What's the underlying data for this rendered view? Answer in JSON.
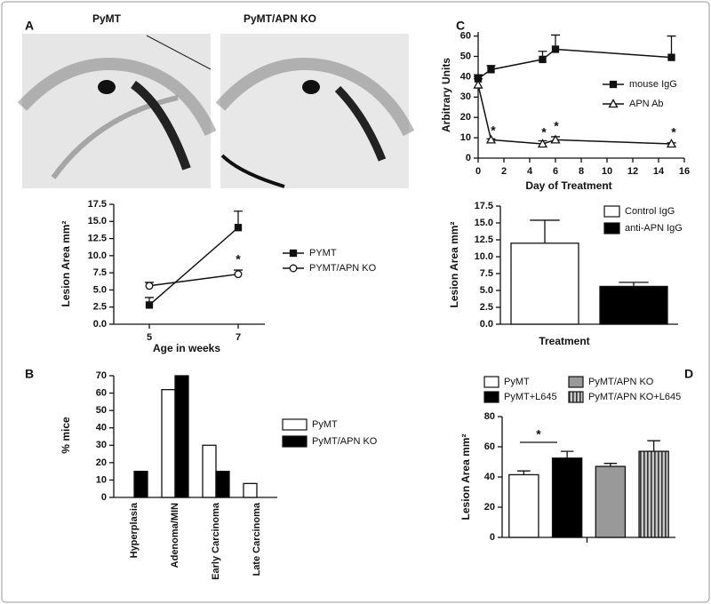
{
  "chart_data": [
    {
      "type": "line",
      "panel": "A",
      "image_titles": [
        "PyMT",
        "PyMT/APN KO"
      ],
      "xlabel": "Age in weeks",
      "ylabel": "Lesion Area mm²",
      "x": [
        5,
        7
      ],
      "xlim": [
        4.2,
        7.6
      ],
      "xticks": [
        5,
        7
      ],
      "ylim": [
        0,
        17.5
      ],
      "yticks": [
        {
          "value": 0,
          "label": "0.0"
        },
        2.5,
        {
          "value": 5,
          "label": "5.0"
        },
        7.5,
        {
          "value": 10,
          "label": "10.0"
        },
        12.5,
        {
          "value": 15,
          "label": "15.0"
        },
        17.5
      ],
      "grid": false,
      "series": [
        {
          "name": "PYMT",
          "color": "#111111",
          "marker": "square",
          "filled": true,
          "values": [
            2.8,
            14.1
          ],
          "errors": [
            1.1,
            2.4
          ]
        },
        {
          "name": "PYMT/APN KO",
          "color": "#111111",
          "marker": "circle",
          "filled": false,
          "values": [
            5.6,
            7.3
          ],
          "errors": [
            0.5,
            0.6
          ]
        }
      ],
      "annotations": [
        "*"
      ]
    },
    {
      "type": "bar",
      "panel": "B",
      "ylabel": "% mice",
      "categories": [
        "Hyperplasia",
        "Adenoma/MIN",
        "Early Carcinoma",
        "Late Carcinoma"
      ],
      "ylim": [
        0,
        70
      ],
      "yticks": [
        0,
        10,
        20,
        30,
        40,
        50,
        60,
        70
      ],
      "grid": false,
      "series": [
        {
          "name": "PyMT",
          "color": "#ffffff",
          "values": [
            0,
            62,
            30,
            8
          ]
        },
        {
          "name": "PyMT/APN KO",
          "color": "#000000",
          "values": [
            15,
            70,
            15,
            0
          ]
        }
      ]
    },
    {
      "type": "line",
      "panel": "C",
      "xlabel": "Day of Treatment",
      "ylabel": "Arbitrary Units",
      "x": [
        0,
        1,
        5,
        6,
        15
      ],
      "xlim": [
        0,
        16
      ],
      "xticks": [
        0,
        2,
        4,
        6,
        8,
        10,
        12,
        14,
        16
      ],
      "ylim": [
        0,
        62
      ],
      "yticks": [
        0,
        10,
        20,
        30,
        40,
        50,
        60
      ],
      "grid": false,
      "series": [
        {
          "name": "mouse IgG",
          "color": "#111111",
          "marker": "square",
          "filled": true,
          "values": [
            39,
            43.5,
            48.5,
            53.5,
            49.5
          ],
          "errors": [
            2,
            2,
            4,
            7,
            10.5
          ]
        },
        {
          "name": "APN Ab",
          "color": "#111111",
          "marker": "triangle",
          "filled": false,
          "values": [
            36,
            9,
            7,
            9,
            7
          ],
          "errors": [
            3,
            0.5,
            1.5,
            1.5,
            0.5
          ]
        }
      ],
      "annotations": [
        "*",
        "*",
        "*",
        "*"
      ]
    },
    {
      "type": "bar",
      "xlabel": "Treatment",
      "ylabel": "Lesion Area mm²",
      "categories": [
        null
      ],
      "ylim": [
        0,
        17.5
      ],
      "yticks": [
        {
          "value": 0,
          "label": "0.0"
        },
        2.5,
        {
          "value": 5,
          "label": "5.0"
        },
        7.5,
        {
          "value": 10,
          "label": "10.0"
        },
        12.5,
        {
          "value": 15,
          "label": "15.0"
        },
        17.5
      ],
      "grid": false,
      "series": [
        {
          "name": "Control IgG",
          "color": "#ffffff",
          "values": [
            12
          ],
          "errors": [
            3.4
          ]
        },
        {
          "name": "anti-APN IgG",
          "color": "#000000",
          "values": [
            5.6
          ],
          "errors": [
            0.6
          ]
        }
      ]
    },
    {
      "type": "bar",
      "panel": "D",
      "ylabel": "Lesion Area mm²",
      "categories": [
        null
      ],
      "ylim": [
        0,
        80
      ],
      "yticks": [
        0,
        20,
        40,
        60,
        80
      ],
      "grid": false,
      "series": [
        {
          "name": "PyMT",
          "color": "#ffffff",
          "values": [
            41.5
          ],
          "errors": [
            2.5
          ]
        },
        {
          "name": "PyMT+L645",
          "color": "#000000",
          "values": [
            52.5
          ],
          "errors": [
            4.5
          ]
        },
        {
          "name": "PyMT/APN KO",
          "color": "#999999",
          "values": [
            47
          ],
          "errors": [
            2
          ]
        },
        {
          "name": "PyMT/APN KO+L645",
          "color": "#bbbbbb",
          "hatch": "vertical",
          "values": [
            57
          ],
          "errors": [
            7
          ]
        }
      ],
      "annotations": [
        "*"
      ]
    }
  ]
}
